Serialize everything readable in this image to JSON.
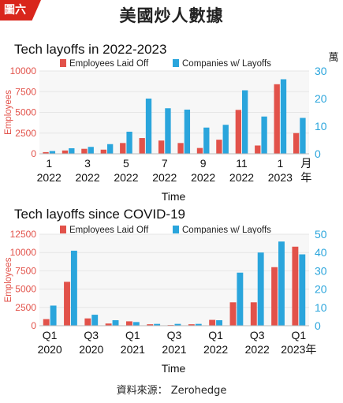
{
  "tag": "圖六",
  "title": "美國炒人數據",
  "unit_note": "萬",
  "source": "資料來源： Zerohedge",
  "colors": {
    "laid_off": "#e2524a",
    "companies": "#2aa5dc",
    "grid": "#e6e6e6",
    "axis_left": "#e2524a",
    "axis_right": "#2aa5dc"
  },
  "chart_data": [
    {
      "type": "bar",
      "title": "Tech layoffs in 2022-2023",
      "xlabel": "Time",
      "ylabel": "Employees",
      "ylim": [
        0,
        10000
      ],
      "y2lim": [
        0,
        30
      ],
      "yticks": [
        "0",
        "2500",
        "5000",
        "7500",
        "10000"
      ],
      "y2ticks": [
        "0",
        "10",
        "20",
        "30"
      ],
      "xticks": [
        {
          "top": "1",
          "bottom": "2022",
          "at": 0
        },
        {
          "top": "3",
          "bottom": "2022",
          "at": 2
        },
        {
          "top": "5",
          "bottom": "2022",
          "at": 4
        },
        {
          "top": "7",
          "bottom": "2022",
          "at": 6
        },
        {
          "top": "9",
          "bottom": "2022",
          "at": 8
        },
        {
          "top": "11",
          "bottom": "2022",
          "at": 10
        },
        {
          "top": "1",
          "bottom": "2023",
          "at": 12
        },
        {
          "top": "月",
          "bottom": "年",
          "at": 13.35
        }
      ],
      "categories": [
        "2022-01",
        "2022-02",
        "2022-03",
        "2022-04",
        "2022-05",
        "2022-06",
        "2022-07",
        "2022-08",
        "2022-09",
        "2022-10",
        "2022-11",
        "2022-12",
        "2023-01",
        "2023-02"
      ],
      "series": [
        {
          "name": "Employees Laid Off",
          "axis": "left",
          "values": [
            200,
            400,
            600,
            500,
            1300,
            1900,
            1600,
            1300,
            700,
            1700,
            5300,
            1000,
            8400,
            2500
          ]
        },
        {
          "name": "Companies w/ Layoffs",
          "axis": "right",
          "values": [
            1,
            2,
            2.5,
            3.5,
            8,
            20,
            16.5,
            16,
            9.5,
            10.5,
            23,
            13.5,
            27,
            13
          ]
        }
      ]
    },
    {
      "type": "bar",
      "title": "Tech layoffs since COVID-19",
      "xlabel": "Time",
      "ylabel": "Employees",
      "ylim": [
        0,
        12500
      ],
      "y2lim": [
        0,
        50
      ],
      "yticks": [
        "0",
        "2500",
        "5000",
        "7500",
        "10000",
        "12500"
      ],
      "y2ticks": [
        "0",
        "10",
        "20",
        "30",
        "40",
        "50"
      ],
      "xticks": [
        {
          "top": "Q1",
          "bottom": "2020",
          "at": 0
        },
        {
          "top": "Q3",
          "bottom": "2020",
          "at": 2
        },
        {
          "top": "Q1",
          "bottom": "2021",
          "at": 4
        },
        {
          "top": "Q3",
          "bottom": "2021",
          "at": 6
        },
        {
          "top": "Q1",
          "bottom": "2022",
          "at": 8
        },
        {
          "top": "Q3",
          "bottom": "2022",
          "at": 10
        },
        {
          "top": "Q1",
          "bottom": "2023年",
          "at": 12
        }
      ],
      "categories": [
        "2020-Q1",
        "2020-Q2",
        "2020-Q3",
        "2020-Q4",
        "2021-Q1",
        "2021-Q2",
        "2021-Q3",
        "2021-Q4",
        "2022-Q1",
        "2022-Q2",
        "2022-Q3",
        "2022-Q4",
        "2023-Q1"
      ],
      "series": [
        {
          "name": "Employees Laid Off",
          "axis": "left",
          "values": [
            900,
            6000,
            1000,
            300,
            600,
            200,
            100,
            200,
            800,
            3200,
            3200,
            8000,
            10800
          ]
        },
        {
          "name": "Companies w/ Layoffs",
          "axis": "right",
          "values": [
            11,
            41,
            6,
            3,
            2,
            1,
            1,
            1,
            3,
            29,
            40,
            46,
            39
          ]
        }
      ]
    }
  ]
}
